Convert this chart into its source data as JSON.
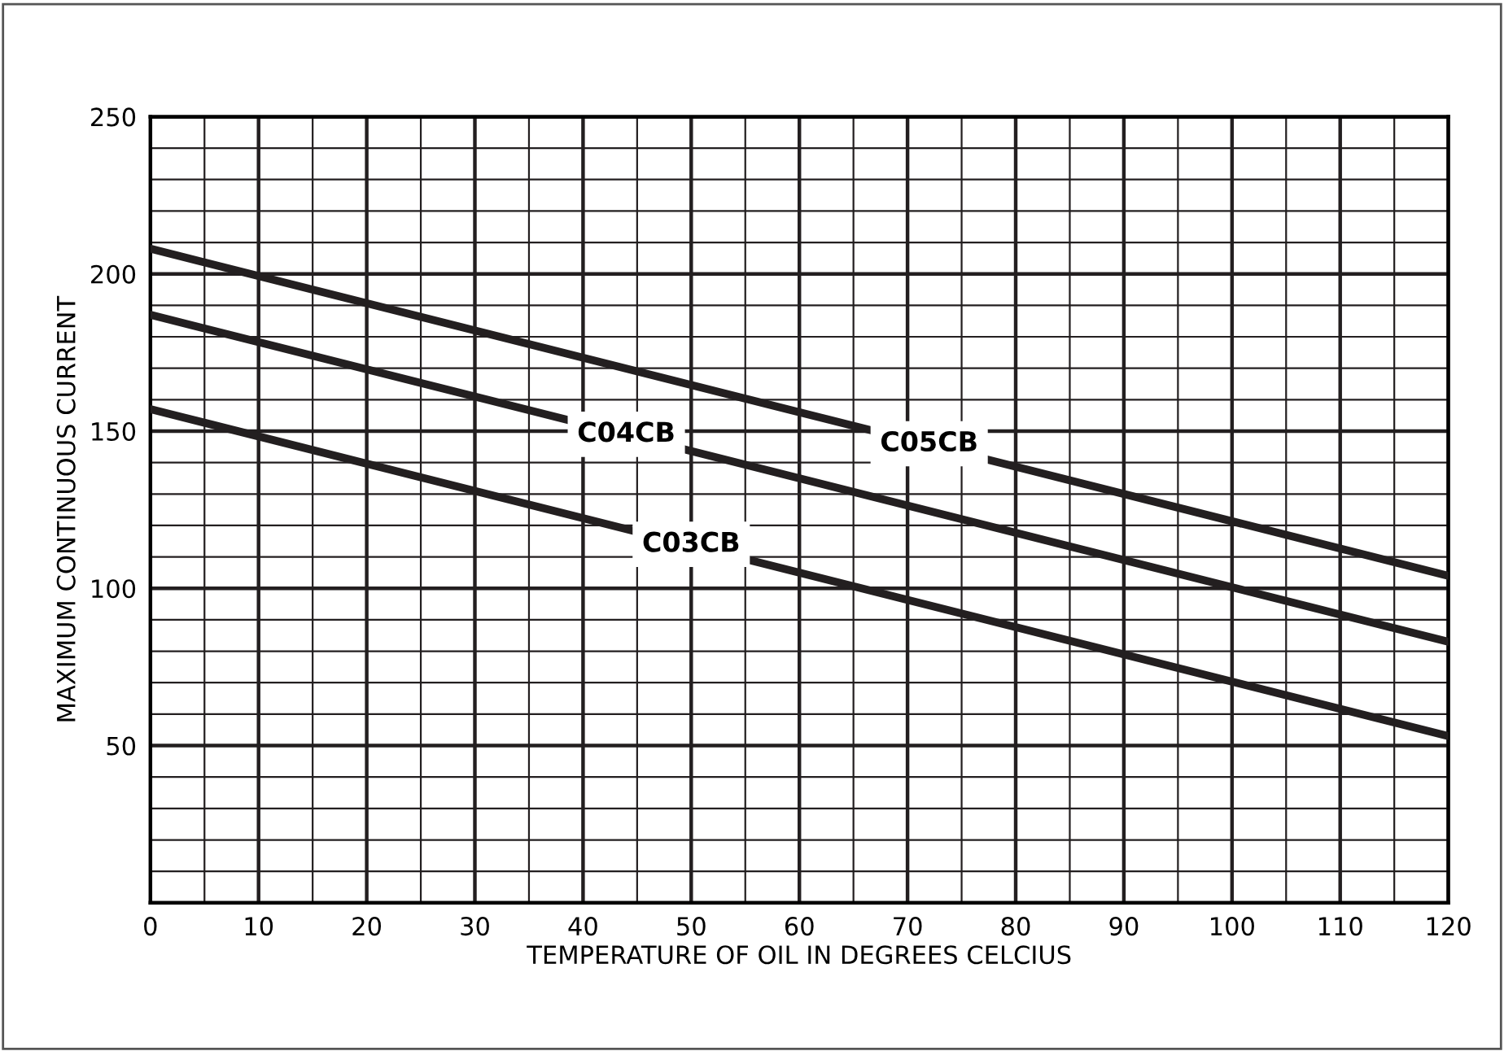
{
  "chart_data": {
    "type": "line",
    "xlabel": "TEMPERATURE OF OIL IN DEGREES CELCIUS",
    "ylabel": "MAXIMUM CONTINUOUS CURRENT",
    "x": [
      0,
      120
    ],
    "series": [
      {
        "color": "#231f20",
        "values": [
          208,
          104
        ]
      },
      {
        "color": "#231f20",
        "values": [
          187,
          83
        ]
      },
      {
        "color": "#231f20",
        "values": [
          157,
          53
        ]
      }
    ],
    "xlim": [
      0,
      120
    ],
    "ylim": [
      0,
      250
    ],
    "xticks": [
      0,
      {
        "value": 5,
        "label": null
      },
      10,
      {
        "value": 15,
        "label": null
      },
      20,
      {
        "value": 25,
        "label": null
      },
      30,
      {
        "value": 35,
        "label": null
      },
      40,
      {
        "value": 45,
        "label": null
      },
      50,
      {
        "value": 55,
        "label": null
      },
      60,
      {
        "value": 65,
        "label": null
      },
      70,
      {
        "value": 75,
        "label": null
      },
      80,
      {
        "value": 85,
        "label": null
      },
      90,
      {
        "value": 95,
        "label": null
      },
      100,
      {
        "value": 105,
        "label": null
      },
      110,
      {
        "value": 115,
        "label": null
      },
      120
    ],
    "yticks": [
      {
        "value": 10,
        "label": null
      },
      {
        "value": 20,
        "label": null
      },
      {
        "value": 30,
        "label": null
      },
      {
        "value": 40,
        "label": null
      },
      50,
      {
        "value": 60,
        "label": null
      },
      {
        "value": 70,
        "label": null
      },
      {
        "value": 80,
        "label": null
      },
      {
        "value": 90,
        "label": null
      },
      100,
      {
        "value": 110,
        "label": null
      },
      {
        "value": 120,
        "label": null
      },
      {
        "value": 130,
        "label": null
      },
      {
        "value": 140,
        "label": null
      },
      150,
      {
        "value": 160,
        "label": null
      },
      {
        "value": 170,
        "label": null
      },
      {
        "value": 180,
        "label": null
      },
      {
        "value": 190,
        "label": null
      },
      200,
      {
        "value": 210,
        "label": null
      },
      {
        "value": 220,
        "label": null
      },
      {
        "value": 230,
        "label": null
      },
      {
        "value": 240,
        "label": null
      },
      250
    ],
    "grid": true,
    "line_style": "solid",
    "marker": "none",
    "annotations": [
      {
        "text": "C04CB",
        "x": 44,
        "y": 149
      },
      {
        "text": "C05CB",
        "x": 72,
        "y": 146
      },
      {
        "text": "C03CB",
        "x": 50,
        "y": 114
      }
    ]
  }
}
